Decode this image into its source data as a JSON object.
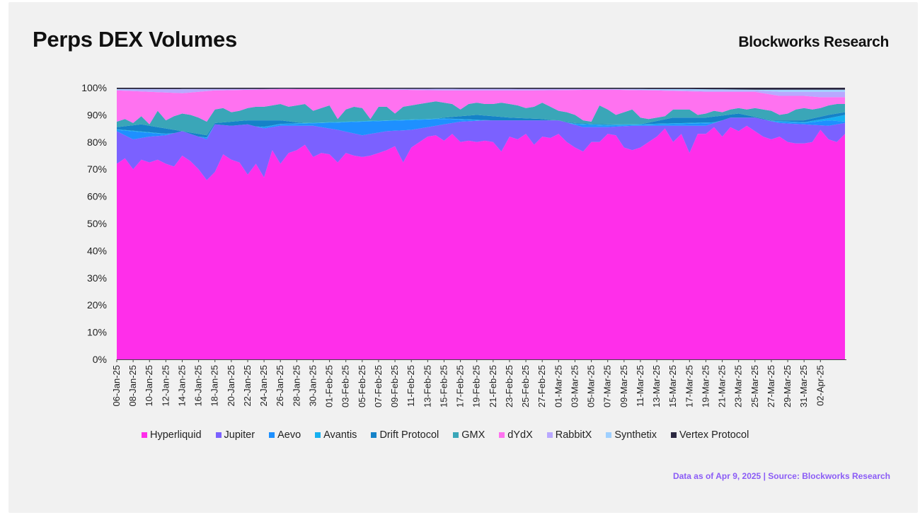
{
  "header": {
    "title": "Perps DEX Volumes",
    "brand": "Blockworks Research"
  },
  "footer": {
    "note": "Data as of Apr 9, 2025 | Source: Blockworks Research"
  },
  "chart_data": {
    "type": "area",
    "stacked": "percent",
    "title": "Perps DEX Volumes",
    "xlabel": "",
    "ylabel": "",
    "ylim": [
      0,
      100
    ],
    "y_ticks": [
      "0%",
      "10%",
      "20%",
      "30%",
      "40%",
      "50%",
      "60%",
      "70%",
      "80%",
      "90%",
      "100%"
    ],
    "x_tick_labels": [
      "06-Jan-25",
      "08-Jan-25",
      "10-Jan-25",
      "12-Jan-25",
      "14-Jan-25",
      "16-Jan-25",
      "18-Jan-25",
      "20-Jan-25",
      "22-Jan-25",
      "24-Jan-25",
      "26-Jan-25",
      "28-Jan-25",
      "30-Jan-25",
      "01-Feb-25",
      "03-Feb-25",
      "05-Feb-25",
      "07-Feb-25",
      "09-Feb-25",
      "11-Feb-25",
      "13-Feb-25",
      "15-Feb-25",
      "17-Feb-25",
      "19-Feb-25",
      "21-Feb-25",
      "23-Feb-25",
      "25-Feb-25",
      "27-Feb-25",
      "01-Mar-25",
      "03-Mar-25",
      "05-Mar-25",
      "07-Mar-25",
      "09-Mar-25",
      "11-Mar-25",
      "13-Mar-25",
      "15-Mar-25",
      "17-Mar-25",
      "19-Mar-25",
      "21-Mar-25",
      "23-Mar-25",
      "25-Mar-25",
      "27-Mar-25",
      "29-Mar-25",
      "31-Mar-25",
      "02-Apr-25"
    ],
    "legend_position": "bottom",
    "grid": false,
    "colors": {
      "Hyperliquid": "#ff2eea",
      "Jupiter": "#7b61ff",
      "Aevo": "#1e90ff",
      "Avantis": "#16b0f0",
      "Drift Protocol": "#1582c8",
      "GMX": "#3aa6b8",
      "dYdX": "#ff72f0",
      "RabbitX": "#b9a8ff",
      "Synthetix": "#9fd0ff",
      "Vertex Protocol": "#2b2740"
    },
    "series_order": [
      "Hyperliquid",
      "Jupiter",
      "Aevo",
      "Avantis",
      "Drift Protocol",
      "GMX",
      "dYdX",
      "RabbitX",
      "Synthetix",
      "Vertex Protocol"
    ],
    "cumulative_keypoints": {
      "Hyperliquid": [
        [
          0,
          72
        ],
        [
          1,
          74
        ],
        [
          2,
          70
        ],
        [
          3,
          73.5
        ],
        [
          4,
          72.5
        ],
        [
          5,
          73.5
        ],
        [
          6,
          72
        ],
        [
          7,
          71
        ],
        [
          8,
          75
        ],
        [
          9,
          73
        ],
        [
          10,
          70
        ],
        [
          11,
          66
        ],
        [
          12,
          69
        ],
        [
          13,
          75.5
        ],
        [
          14,
          73.5
        ],
        [
          15,
          72.5
        ],
        [
          16,
          68
        ],
        [
          17,
          72
        ],
        [
          18,
          67
        ],
        [
          19,
          77
        ],
        [
          20,
          72
        ],
        [
          21,
          76
        ],
        [
          22,
          77
        ],
        [
          23,
          79
        ],
        [
          24,
          74.5
        ],
        [
          25,
          76
        ],
        [
          26,
          75.5
        ],
        [
          27,
          72.5
        ],
        [
          28,
          76
        ],
        [
          29,
          75
        ],
        [
          30,
          74.5
        ],
        [
          31,
          75
        ],
        [
          32,
          76
        ],
        [
          33,
          77
        ],
        [
          34,
          78.5
        ],
        [
          35,
          72.5
        ],
        [
          36,
          78
        ],
        [
          37,
          80
        ],
        [
          38,
          82
        ],
        [
          39,
          82.5
        ],
        [
          40,
          80.5
        ],
        [
          41,
          83
        ],
        [
          42,
          80
        ],
        [
          43,
          80.5
        ],
        [
          44,
          80
        ],
        [
          45,
          80.5
        ],
        [
          46,
          80
        ],
        [
          47,
          76.5
        ],
        [
          48,
          82
        ],
        [
          49,
          81
        ],
        [
          50,
          83
        ],
        [
          51,
          79
        ],
        [
          52,
          82
        ],
        [
          53,
          81.5
        ],
        [
          54,
          83
        ],
        [
          55,
          80
        ],
        [
          56,
          78
        ],
        [
          57,
          76.5
        ],
        [
          58,
          80
        ],
        [
          59,
          80
        ],
        [
          60,
          83
        ],
        [
          61,
          82.5
        ],
        [
          62,
          78
        ],
        [
          63,
          77
        ],
        [
          64,
          78
        ],
        [
          65,
          80
        ],
        [
          66,
          82
        ],
        [
          67,
          85
        ],
        [
          68,
          80
        ],
        [
          69,
          83
        ],
        [
          70,
          76
        ],
        [
          71,
          83
        ],
        [
          72,
          83
        ],
        [
          73,
          85.5
        ],
        [
          74,
          82
        ],
        [
          75,
          85.5
        ],
        [
          76,
          84
        ],
        [
          77,
          86
        ],
        [
          78,
          84
        ],
        [
          79,
          82
        ],
        [
          80,
          81
        ],
        [
          81,
          82
        ],
        [
          82,
          80
        ],
        [
          83,
          79.5
        ],
        [
          84,
          79.5
        ],
        [
          85,
          80
        ],
        [
          86,
          84.5
        ],
        [
          87,
          81
        ],
        [
          88,
          80
        ],
        [
          89,
          83
        ]
      ],
      "Jupiter": [
        [
          0,
          84
        ],
        [
          2,
          81
        ],
        [
          4,
          82
        ],
        [
          6,
          82.5
        ],
        [
          8,
          84
        ],
        [
          11,
          81
        ],
        [
          12,
          86.5
        ],
        [
          14,
          86
        ],
        [
          16,
          86.5
        ],
        [
          18,
          85
        ],
        [
          20,
          86
        ],
        [
          22,
          86
        ],
        [
          24,
          86
        ],
        [
          27,
          84.5
        ],
        [
          30,
          82.5
        ],
        [
          33,
          84
        ],
        [
          36,
          84.5
        ],
        [
          39,
          86
        ],
        [
          42,
          87.5
        ],
        [
          45,
          88
        ],
        [
          48,
          88
        ],
        [
          51,
          88
        ],
        [
          54,
          88
        ],
        [
          57,
          85.5
        ],
        [
          60,
          85.5
        ],
        [
          63,
          86
        ],
        [
          66,
          86
        ],
        [
          69,
          86
        ],
        [
          72,
          86
        ],
        [
          75,
          89
        ],
        [
          78,
          89
        ],
        [
          81,
          87
        ],
        [
          84,
          86.5
        ],
        [
          87,
          86
        ],
        [
          89,
          87
        ]
      ],
      "Aevo": [
        [
          0,
          84.5
        ],
        [
          11,
          81.5
        ],
        [
          20,
          86.5
        ],
        [
          40,
          88.5
        ],
        [
          60,
          86
        ],
        [
          80,
          87.5
        ],
        [
          84,
          87
        ],
        [
          87,
          88
        ],
        [
          89,
          87.5
        ]
      ],
      "Avantis": [
        [
          0,
          84.7
        ],
        [
          11,
          81.7
        ],
        [
          20,
          86.7
        ],
        [
          40,
          88.7
        ],
        [
          60,
          86.3
        ],
        [
          80,
          87.8
        ],
        [
          84,
          87.3
        ],
        [
          87,
          88.8
        ],
        [
          89,
          90
        ]
      ],
      "Drift Protocol": [
        [
          0,
          85.5
        ],
        [
          3,
          86.5
        ],
        [
          6,
          85
        ],
        [
          11,
          82.5
        ],
        [
          12,
          87
        ],
        [
          16,
          88
        ],
        [
          20,
          88
        ],
        [
          24,
          86.5
        ],
        [
          28,
          85.5
        ],
        [
          32,
          86.5
        ],
        [
          36,
          87
        ],
        [
          40,
          89
        ],
        [
          44,
          90
        ],
        [
          48,
          89
        ],
        [
          52,
          88.5
        ],
        [
          56,
          87
        ],
        [
          60,
          86.5
        ],
        [
          64,
          86.5
        ],
        [
          68,
          89
        ],
        [
          72,
          89
        ],
        [
          76,
          90.5
        ],
        [
          80,
          88
        ],
        [
          84,
          88
        ],
        [
          87,
          90
        ],
        [
          89,
          91
        ]
      ],
      "GMX": [
        [
          0,
          87.5
        ],
        [
          1,
          88.5
        ],
        [
          2,
          87
        ],
        [
          3,
          89.5
        ],
        [
          4,
          86.5
        ],
        [
          5,
          91.5
        ],
        [
          6,
          88
        ],
        [
          7,
          89.5
        ],
        [
          8,
          90.5
        ],
        [
          9,
          90
        ],
        [
          10,
          89
        ],
        [
          11,
          87.5
        ],
        [
          12,
          92
        ],
        [
          13,
          92.5
        ],
        [
          14,
          91
        ],
        [
          15,
          91.5
        ],
        [
          16,
          92.5
        ],
        [
          17,
          93
        ],
        [
          18,
          93
        ],
        [
          19,
          93.5
        ],
        [
          20,
          94
        ],
        [
          21,
          93
        ],
        [
          22,
          93.5
        ],
        [
          23,
          94
        ],
        [
          24,
          91.5
        ],
        [
          25,
          92.5
        ],
        [
          26,
          93.5
        ],
        [
          27,
          88.5
        ],
        [
          28,
          92
        ],
        [
          29,
          93
        ],
        [
          30,
          92.5
        ],
        [
          31,
          88.5
        ],
        [
          32,
          93
        ],
        [
          33,
          93
        ],
        [
          34,
          90.5
        ],
        [
          35,
          93
        ],
        [
          36,
          93.5
        ],
        [
          37,
          94
        ],
        [
          38,
          94.5
        ],
        [
          39,
          95
        ],
        [
          40,
          94.5
        ],
        [
          41,
          94
        ],
        [
          42,
          92
        ],
        [
          43,
          94
        ],
        [
          44,
          94.5
        ],
        [
          45,
          94
        ],
        [
          46,
          94
        ],
        [
          47,
          94.5
        ],
        [
          48,
          94
        ],
        [
          49,
          93.5
        ],
        [
          50,
          92.5
        ],
        [
          51,
          93
        ],
        [
          52,
          94.5
        ],
        [
          53,
          93
        ],
        [
          54,
          91.5
        ],
        [
          55,
          91
        ],
        [
          56,
          90
        ],
        [
          57,
          88
        ],
        [
          58,
          87.5
        ],
        [
          59,
          93.5
        ],
        [
          60,
          92
        ],
        [
          61,
          90
        ],
        [
          62,
          91
        ],
        [
          63,
          92
        ],
        [
          64,
          89
        ],
        [
          65,
          88.5
        ],
        [
          66,
          89
        ],
        [
          67,
          89.5
        ],
        [
          68,
          92
        ],
        [
          69,
          92
        ],
        [
          70,
          92
        ],
        [
          71,
          90
        ],
        [
          72,
          90.5
        ],
        [
          73,
          91.5
        ],
        [
          74,
          91
        ],
        [
          75,
          92
        ],
        [
          76,
          92.5
        ],
        [
          77,
          92
        ],
        [
          78,
          92.5
        ],
        [
          79,
          92
        ],
        [
          80,
          91.5
        ],
        [
          81,
          90
        ],
        [
          82,
          90.5
        ],
        [
          83,
          92
        ],
        [
          84,
          92.5
        ],
        [
          85,
          92
        ],
        [
          86,
          92.5
        ],
        [
          87,
          93.5
        ],
        [
          88,
          94
        ],
        [
          89,
          94
        ]
      ],
      "dYdX": [
        [
          0,
          99
        ],
        [
          4,
          98.5
        ],
        [
          8,
          98
        ],
        [
          12,
          99
        ],
        [
          20,
          99.5
        ],
        [
          30,
          99.5
        ],
        [
          40,
          99
        ],
        [
          50,
          99
        ],
        [
          60,
          99.3
        ],
        [
          66,
          99
        ],
        [
          72,
          98.5
        ],
        [
          78,
          98.5
        ],
        [
          81,
          97
        ],
        [
          84,
          97
        ],
        [
          86,
          96.5
        ],
        [
          89,
          96.5
        ]
      ],
      "RabbitX": [
        [
          0,
          99.3
        ],
        [
          20,
          99.6
        ],
        [
          60,
          99.5
        ],
        [
          72,
          99
        ],
        [
          78,
          99
        ],
        [
          81,
          98.5
        ],
        [
          84,
          98.5
        ],
        [
          89,
          98.5
        ]
      ],
      "Synthetix": [
        [
          0,
          99.5
        ],
        [
          40,
          99.6
        ],
        [
          70,
          99.5
        ],
        [
          78,
          99.3
        ],
        [
          89,
          99.3
        ]
      ],
      "Vertex Protocol": [
        [
          0,
          100
        ],
        [
          89,
          100
        ]
      ]
    },
    "n_points": 90
  }
}
